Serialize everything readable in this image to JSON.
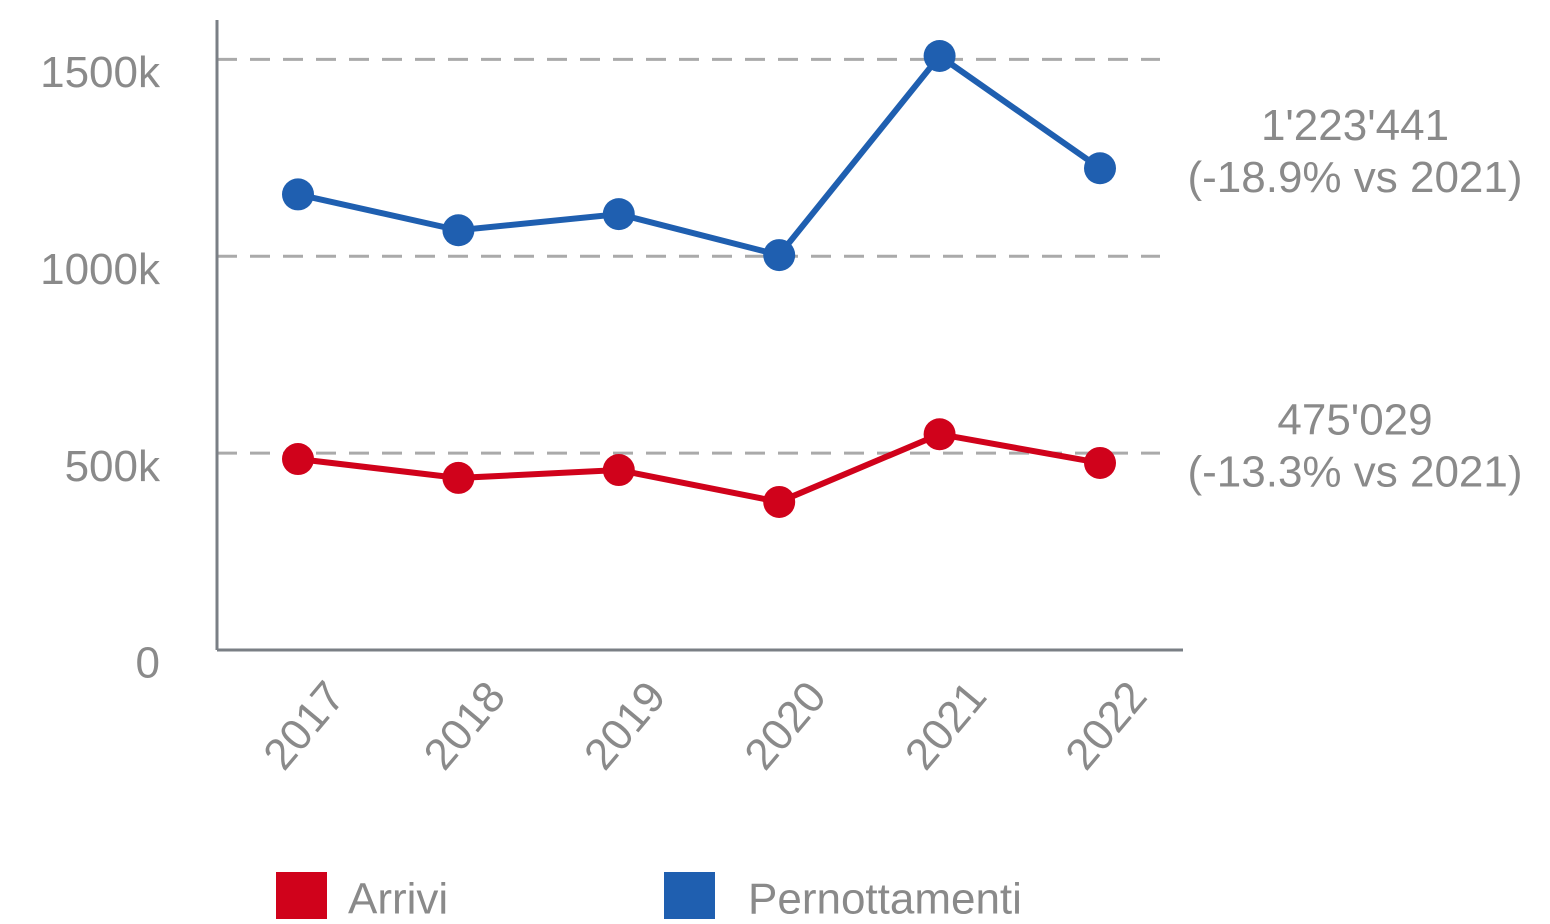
{
  "chart_data": {
    "type": "line",
    "categories": [
      "2017",
      "2018",
      "2019",
      "2020",
      "2021",
      "2022"
    ],
    "series": [
      {
        "name": "Arrivi",
        "color": "#d0021b",
        "values": [
          485000,
          437000,
          457000,
          376000,
          548000,
          475029
        ],
        "value_labels": [
          null,
          null,
          null,
          null,
          null,
          "475'029"
        ],
        "annotation": "(-13.3% vs 2021)"
      },
      {
        "name": "Pernottamenti",
        "color": "#1f5fb0",
        "values": [
          1157000,
          1066000,
          1107000,
          1003000,
          1508600,
          1223441
        ],
        "value_labels": [
          null,
          null,
          null,
          null,
          null,
          "1'223'441"
        ],
        "annotation": "(-18.9% vs 2021)"
      }
    ],
    "ylim": [
      0,
      1600000
    ],
    "yticks": [
      {
        "value": 0,
        "label": "0"
      },
      {
        "value": 500000,
        "label": "500k"
      },
      {
        "value": 1000000,
        "label": "1000k"
      },
      {
        "value": 1500000,
        "label": "1500k"
      }
    ],
    "grid": true
  }
}
